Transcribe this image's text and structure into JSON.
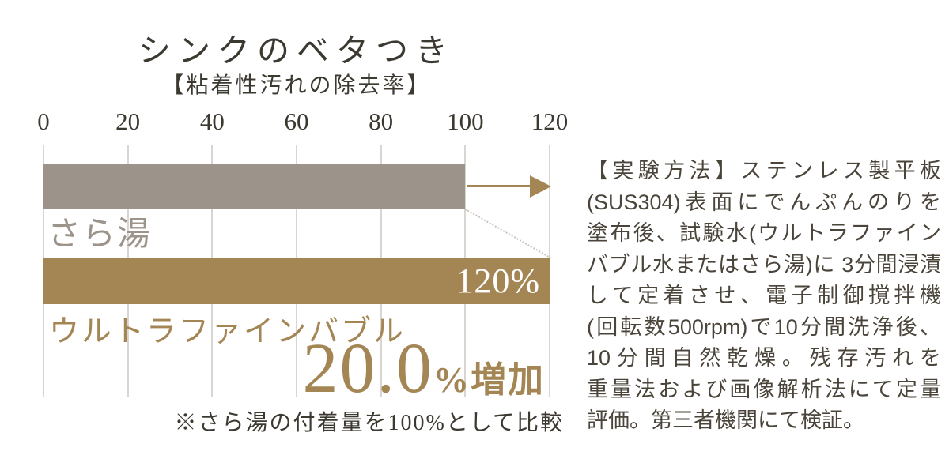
{
  "header": {
    "title": "シンクのベタつき",
    "subtitle": "【粘着性汚れの除去率】"
  },
  "chart_data": {
    "type": "bar",
    "orientation": "horizontal",
    "title": "シンクのベタつき",
    "subtitle": "【粘着性汚れの除去率】",
    "x_ticks": [
      0,
      20,
      40,
      60,
      80,
      100,
      120
    ],
    "xlim": [
      0,
      120
    ],
    "grid": true,
    "unit": "%",
    "series": [
      {
        "name": "さら湯",
        "value": 100
      },
      {
        "name": "ウルトラファインバブル",
        "value": 120,
        "value_label": "120%"
      }
    ],
    "annotation": {
      "value": "20.0",
      "suffix": "%増加"
    },
    "note": "※さら湯の付着量を100%として比較"
  },
  "colors": {
    "bar-gray": "#9c948a",
    "bar-brown": "#a48655",
    "text-dark": "#3c3931",
    "text-method": "#4a443a",
    "grid": "#d9d6d1",
    "dotted": "#c9c4bc",
    "white": "#ffffff"
  },
  "method": {
    "lines": [
      "【実験方法】ステンレス製平板",
      "(SUS304)表面にでんぷんのりを",
      "塗布後、試験水(ウルトラファイン",
      "バブル水またはさら湯)に 3分間浸漬",
      "して定着させ、電子制御撹拌機",
      "(回転数500rpm)で10分間洗浄後、",
      "10分間自然乾燥。残存汚れを",
      "重量法および画像解析法にて定量",
      "評価。第三者機関にて検証。"
    ]
  }
}
